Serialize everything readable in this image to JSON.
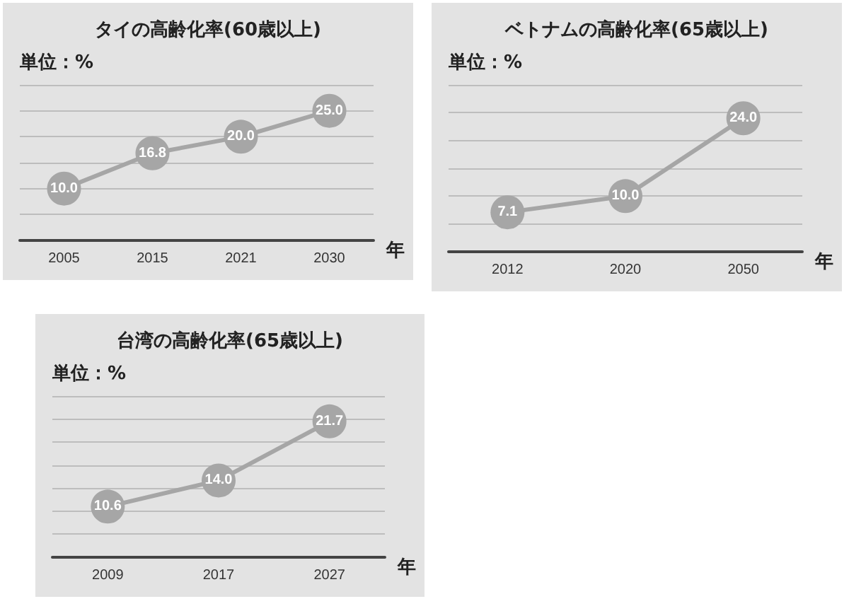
{
  "chart_data": [
    {
      "type": "line",
      "title": "タイの高齢化率(60歳以上)",
      "ylabel": "単位：%",
      "xlabel": "年",
      "categories": [
        "2005",
        "2015",
        "2021",
        "2030"
      ],
      "values": [
        10.0,
        16.8,
        20.0,
        25.0
      ],
      "value_labels": [
        "10.0",
        "16.8",
        "20.0",
        "25.0"
      ],
      "color": "#a6a6a6",
      "ylim": [
        0,
        30
      ],
      "yticks": [
        {
          "value": 5,
          "label": null
        },
        {
          "value": 10,
          "label": null
        },
        {
          "value": 15,
          "label": null
        },
        {
          "value": 20,
          "label": null
        },
        {
          "value": 25,
          "label": null
        },
        {
          "value": 30,
          "label": null
        }
      ],
      "grid": "y",
      "marker": "circle",
      "tick_labels": "x"
    },
    {
      "type": "line",
      "title": "ベトナムの高齢化率(65歳以上)",
      "ylabel": "単位：%",
      "xlabel": "年",
      "categories": [
        "2012",
        "2020",
        "2050"
      ],
      "values": [
        7.1,
        10.0,
        24.0
      ],
      "value_labels": [
        "7.1",
        "10.0",
        "24.0"
      ],
      "color": "#a6a6a6",
      "ylim": [
        0,
        30
      ],
      "yticks": [
        {
          "value": 5,
          "label": null
        },
        {
          "value": 10,
          "label": null
        },
        {
          "value": 15,
          "label": null
        },
        {
          "value": 20,
          "label": null
        },
        {
          "value": 25,
          "label": null
        },
        {
          "value": 30,
          "label": null
        }
      ],
      "grid": "y",
      "marker": "circle",
      "tick_labels": "x"
    },
    {
      "type": "line",
      "title": "台湾の高齢化率(65歳以上)",
      "ylabel": "単位：%",
      "xlabel": "年",
      "categories": [
        "2009",
        "2017",
        "2027"
      ],
      "values": [
        10.6,
        14.0,
        21.7
      ],
      "value_labels": [
        "10.6",
        "14.0",
        "21.7"
      ],
      "color": "#a6a6a6",
      "ylim": [
        4,
        25
      ],
      "yticks": [
        {
          "value": 7,
          "label": null
        },
        {
          "value": 10,
          "label": null
        },
        {
          "value": 13,
          "label": null
        },
        {
          "value": 16,
          "label": null
        },
        {
          "value": 19,
          "label": null
        },
        {
          "value": 22,
          "label": null
        },
        {
          "value": 25,
          "label": null
        }
      ],
      "grid": "y",
      "marker": "circle",
      "tick_labels": "x"
    }
  ]
}
